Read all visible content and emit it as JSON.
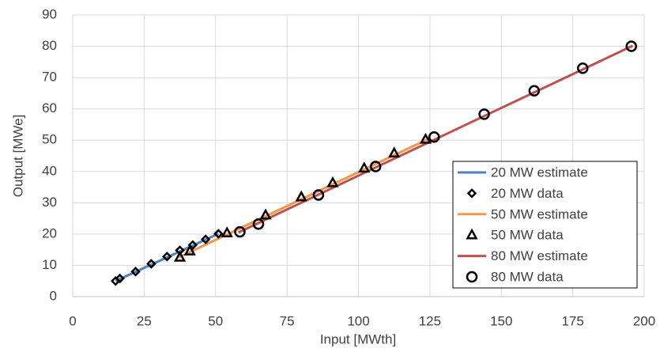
{
  "chart_data": {
    "type": "scatter",
    "x_label": "Input [MWth]",
    "y_label": "Output [MWe]",
    "xlim": [
      0,
      200
    ],
    "xticks": [
      0,
      25,
      50,
      75,
      100,
      125,
      150,
      175,
      200
    ],
    "ylim": [
      0,
      90
    ],
    "yticks": [
      0,
      10,
      20,
      30,
      40,
      50,
      60,
      70,
      80,
      90
    ],
    "grid": true,
    "legend": "lower right",
    "series": [
      {
        "name": "20 MW estimate",
        "mode": "line",
        "color": "#4f81bd",
        "x": [
          15,
          51
        ],
        "values": [
          5,
          20.1
        ]
      },
      {
        "name": "20 MW data",
        "mode": "markers",
        "marker": "diamond",
        "color": "#000000",
        "x": [
          15,
          16.5,
          22,
          27.5,
          33,
          37.5,
          42,
          46.5,
          51
        ],
        "values": [
          5,
          5.8,
          8,
          10.5,
          12.8,
          14.8,
          16.5,
          18.3,
          20.1
        ]
      },
      {
        "name": "50 MW estimate",
        "mode": "line",
        "color": "#f79646",
        "x": [
          37,
          124
        ],
        "values": [
          12.5,
          50.2
        ]
      },
      {
        "name": "50 MW data",
        "mode": "markers",
        "marker": "triangle",
        "color": "#000000",
        "x": [
          37.5,
          41,
          54,
          67.5,
          80,
          91,
          102,
          112.5,
          123.5
        ],
        "values": [
          12.5,
          14.5,
          20.3,
          26,
          31.8,
          36.3,
          41,
          45.8,
          50.2
        ]
      },
      {
        "name": "80 MW estimate",
        "mode": "line",
        "color": "#c0504d",
        "x": [
          58,
          196
        ],
        "values": [
          20.5,
          80.2
        ]
      },
      {
        "name": "80 MW data",
        "mode": "markers",
        "marker": "circle",
        "color": "#000000",
        "x": [
          58.5,
          65,
          86,
          106,
          126.5,
          144,
          161.5,
          178.5,
          195.5
        ],
        "values": [
          20.7,
          23.2,
          32.5,
          41.6,
          51,
          58.3,
          65.8,
          73,
          80
        ]
      }
    ]
  }
}
